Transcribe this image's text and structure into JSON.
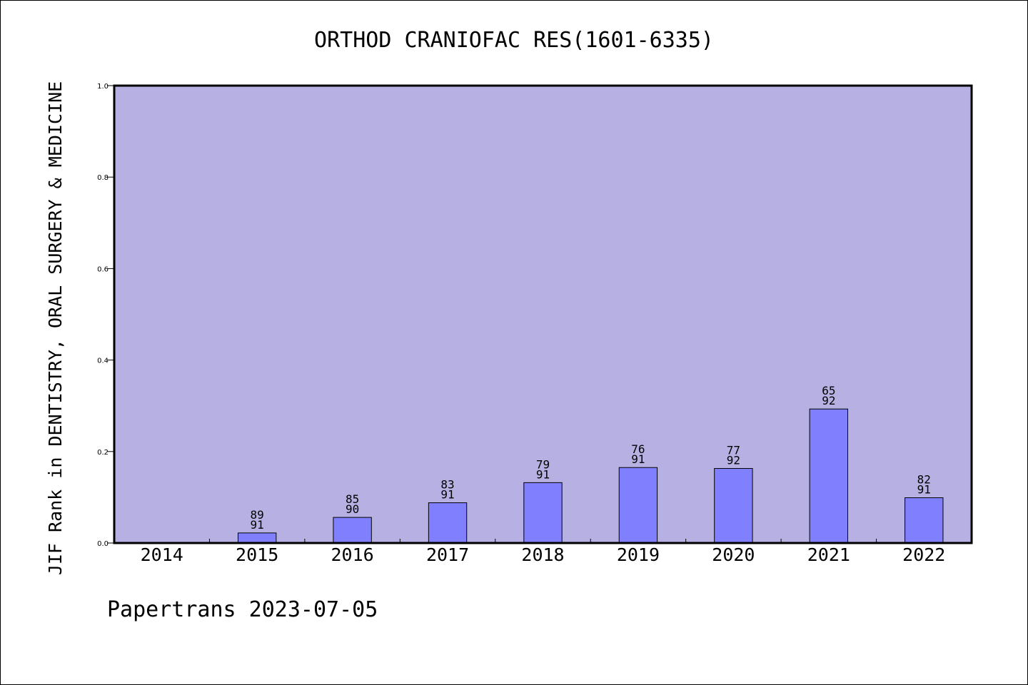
{
  "chart_data": {
    "type": "bar",
    "title": "ORTHOD CRANIOFAC RES(1601-6335)",
    "ylabel": "JIF Rank in DENTISTRY, ORAL SURGERY & MEDICINE",
    "xlabel": "",
    "ylim": [
      0,
      1.0
    ],
    "yticks": [
      "0.0",
      "0.2",
      "0.4",
      "0.6",
      "0.8",
      "1.0"
    ],
    "grid": false,
    "categories": [
      "2014",
      "2015",
      "2016",
      "2017",
      "2018",
      "2019",
      "2020",
      "2021",
      "2022"
    ],
    "series": [
      {
        "values": [
          null,
          0.022,
          0.056,
          0.088,
          0.132,
          0.165,
          0.163,
          0.293,
          0.099
        ],
        "rank": [
          "",
          "89",
          "85",
          "83",
          "79",
          "76",
          "77",
          "65",
          "82"
        ],
        "total": [
          "",
          "91",
          "90",
          "91",
          "91",
          "91",
          "92",
          "92",
          "91"
        ]
      }
    ],
    "colors": {
      "plot_background": "#b7b1e3",
      "bar_fill": "#8080ff",
      "bar_stroke": "#000000"
    }
  },
  "footer": {
    "text": "Papertrans 2023-07-05"
  }
}
